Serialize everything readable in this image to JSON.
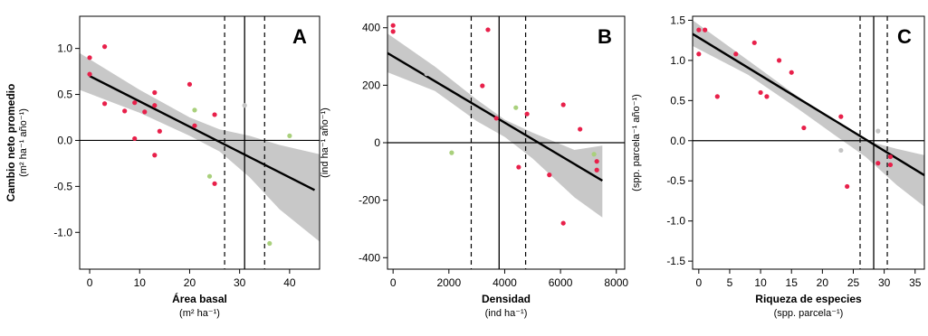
{
  "colors": {
    "red": "#e8204a",
    "green": "#a9d07c",
    "gray": "#c4c4c4",
    "band": "#c8c8c8",
    "line": "#000000"
  },
  "chart_data": [
    {
      "type": "scatter",
      "panel_label": "A",
      "xlabel": "Área basal",
      "xunit": "(m² ha⁻¹)",
      "ylabel": "Cambio neto promedio",
      "yunit": "(m² ha⁻¹ año⁻¹)",
      "xlim": [
        -2,
        46
      ],
      "ylim": [
        -1.4,
        1.35
      ],
      "xticks": [
        0,
        10,
        20,
        30,
        40
      ],
      "yticks": [
        -1.0,
        -0.5,
        0.0,
        0.5,
        1.0
      ],
      "ytick_labels": [
        "-1.0",
        "-0.5",
        "0.0",
        "0.5",
        "1.0"
      ],
      "fit": {
        "x0": 0,
        "y0": 0.7,
        "x1": 45,
        "y1": -0.54
      },
      "band": [
        [
          -2,
          0.55,
          0.95
        ],
        [
          10,
          0.3,
          0.55
        ],
        [
          20,
          0.05,
          0.25
        ],
        [
          26,
          -0.12,
          0.12
        ],
        [
          32,
          -0.4,
          0.05
        ],
        [
          38,
          -0.75,
          -0.05
        ],
        [
          46,
          -1.1,
          -0.15
        ]
      ],
      "vlines": {
        "solid": 31,
        "dashed": [
          27,
          35
        ]
      },
      "points": [
        {
          "x": 0,
          "y": 0.9,
          "c": "red"
        },
        {
          "x": 0,
          "y": 0.72,
          "c": "red"
        },
        {
          "x": 3,
          "y": 1.02,
          "c": "red"
        },
        {
          "x": 3,
          "y": 0.4,
          "c": "red"
        },
        {
          "x": 7,
          "y": 0.32,
          "c": "red"
        },
        {
          "x": 9,
          "y": 0.02,
          "c": "red"
        },
        {
          "x": 9,
          "y": 0.41,
          "c": "red"
        },
        {
          "x": 11,
          "y": 0.31,
          "c": "red"
        },
        {
          "x": 13,
          "y": 0.52,
          "c": "red"
        },
        {
          "x": 13,
          "y": 0.38,
          "c": "red"
        },
        {
          "x": 13,
          "y": -0.16,
          "c": "red"
        },
        {
          "x": 14,
          "y": 0.1,
          "c": "red"
        },
        {
          "x": 20,
          "y": 0.61,
          "c": "red"
        },
        {
          "x": 21,
          "y": 0.16,
          "c": "red"
        },
        {
          "x": 21,
          "y": 0.33,
          "c": "green"
        },
        {
          "x": 25,
          "y": 0.28,
          "c": "red"
        },
        {
          "x": 25,
          "y": -0.47,
          "c": "red"
        },
        {
          "x": 24,
          "y": -0.39,
          "c": "green"
        },
        {
          "x": 31,
          "y": 0.38,
          "c": "gray"
        },
        {
          "x": 40,
          "y": 0.05,
          "c": "green"
        },
        {
          "x": 36,
          "y": -1.12,
          "c": "green"
        }
      ]
    },
    {
      "type": "scatter",
      "panel_label": "B",
      "xlabel": "Densidad",
      "xunit": "(ind ha⁻¹)",
      "ylabel": "",
      "yunit": "(ind ha⁻¹ año⁻¹)",
      "xlim": [
        -200,
        8300
      ],
      "ylim": [
        -440,
        440
      ],
      "xticks": [
        0,
        2000,
        4000,
        6000,
        8000
      ],
      "yticks": [
        -400,
        -200,
        0,
        200,
        400
      ],
      "ytick_labels": [
        "-400",
        "-200",
        "0",
        "200",
        "400"
      ],
      "fit": {
        "x0": -200,
        "y0": 312,
        "x1": 7500,
        "y1": -132
      },
      "band": [
        [
          -200,
          245,
          380
        ],
        [
          1500,
          180,
          265
        ],
        [
          3000,
          75,
          150
        ],
        [
          4000,
          20,
          80
        ],
        [
          5000,
          -55,
          35
        ],
        [
          6500,
          -190,
          -25
        ],
        [
          7500,
          -260,
          -10
        ]
      ],
      "vlines": {
        "solid": 3800,
        "dashed": [
          2800,
          4750
        ]
      },
      "points": [
        {
          "x": 0,
          "y": 408,
          "c": "red"
        },
        {
          "x": 0,
          "y": 387,
          "c": "red"
        },
        {
          "x": 3400,
          "y": 393,
          "c": "red"
        },
        {
          "x": 3200,
          "y": 198,
          "c": "red"
        },
        {
          "x": 3700,
          "y": 85,
          "c": "red"
        },
        {
          "x": 4400,
          "y": 122,
          "c": "green"
        },
        {
          "x": 4800,
          "y": 100,
          "c": "red"
        },
        {
          "x": 6100,
          "y": 132,
          "c": "red"
        },
        {
          "x": 6700,
          "y": 47,
          "c": "red"
        },
        {
          "x": 7200,
          "y": -40,
          "c": "green"
        },
        {
          "x": 7300,
          "y": -65,
          "c": "red"
        },
        {
          "x": 7300,
          "y": -95,
          "c": "red"
        },
        {
          "x": 4500,
          "y": -85,
          "c": "red"
        },
        {
          "x": 5600,
          "y": -112,
          "c": "red"
        },
        {
          "x": 6100,
          "y": -280,
          "c": "red"
        },
        {
          "x": 2100,
          "y": -35,
          "c": "green"
        },
        {
          "x": 1200,
          "y": 240,
          "c": "gray"
        }
      ]
    },
    {
      "type": "scatter",
      "panel_label": "C",
      "xlabel": "Riqueza de especies",
      "xunit": "(spp. parcela⁻¹)",
      "ylabel": "",
      "yunit": "(spp. parcela⁻¹ año⁻¹)",
      "xlim": [
        -1,
        36.5
      ],
      "ylim": [
        -1.6,
        1.55
      ],
      "xticks": [
        0,
        5,
        10,
        15,
        20,
        25,
        30,
        35
      ],
      "yticks": [
        -1.5,
        -1.0,
        -0.5,
        0.0,
        0.5,
        1.0,
        1.5
      ],
      "ytick_labels": [
        "-1.5",
        "-1.0",
        "-0.5",
        "0.0",
        "0.5",
        "1.0",
        "1.5"
      ],
      "fit": {
        "x0": -1,
        "y0": 1.33,
        "x1": 36.5,
        "y1": -0.43
      },
      "band": [
        [
          -1,
          1.18,
          1.5
        ],
        [
          8,
          0.82,
          1.0
        ],
        [
          16,
          0.4,
          0.55
        ],
        [
          22,
          0.07,
          0.23
        ],
        [
          27,
          -0.2,
          0.0
        ],
        [
          32,
          -0.55,
          -0.1
        ],
        [
          36.5,
          -0.82,
          -0.18
        ]
      ],
      "vlines": {
        "solid": 28.3,
        "dashed": [
          26.1,
          30.5
        ]
      },
      "points": [
        {
          "x": 0,
          "y": 1.38,
          "c": "red"
        },
        {
          "x": 1,
          "y": 1.38,
          "c": "red"
        },
        {
          "x": 0,
          "y": 1.08,
          "c": "red"
        },
        {
          "x": 3,
          "y": 0.55,
          "c": "red"
        },
        {
          "x": 6,
          "y": 1.08,
          "c": "red"
        },
        {
          "x": 9,
          "y": 1.22,
          "c": "red"
        },
        {
          "x": 10,
          "y": 0.6,
          "c": "red"
        },
        {
          "x": 11,
          "y": 0.55,
          "c": "red"
        },
        {
          "x": 13,
          "y": 1.0,
          "c": "red"
        },
        {
          "x": 15,
          "y": 0.85,
          "c": "red"
        },
        {
          "x": 17,
          "y": 0.16,
          "c": "red"
        },
        {
          "x": 23,
          "y": 0.3,
          "c": "red"
        },
        {
          "x": 24,
          "y": -0.57,
          "c": "red"
        },
        {
          "x": 23,
          "y": -0.12,
          "c": "gray"
        },
        {
          "x": 29,
          "y": 0.12,
          "c": "gray"
        },
        {
          "x": 29,
          "y": -0.28,
          "c": "red"
        },
        {
          "x": 31,
          "y": -0.2,
          "c": "red"
        },
        {
          "x": 31,
          "y": -0.3,
          "c": "red"
        }
      ]
    }
  ]
}
